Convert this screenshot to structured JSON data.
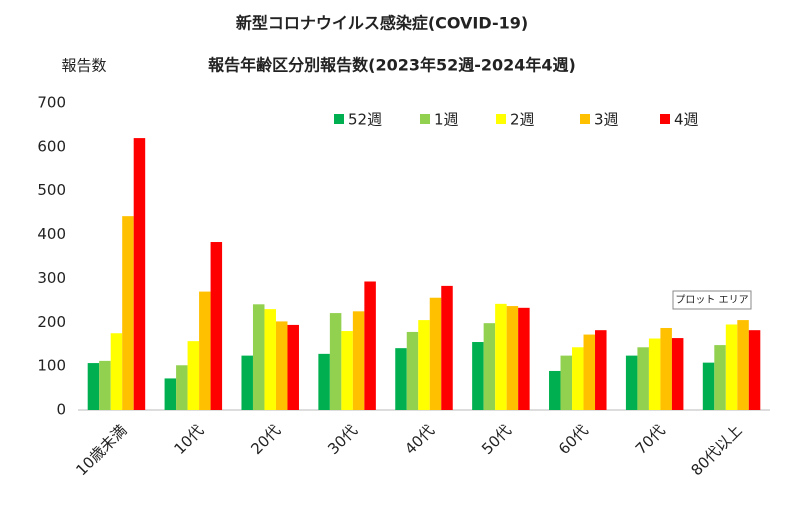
{
  "chart_data": {
    "type": "bar",
    "title": "新型コロナウイルス感染症(COVID-19)",
    "subtitle": "報告年齢区分別報告数(2023年52週-2024年4週)",
    "y_label": "報告数",
    "tooltip": "プロット エリア",
    "categories": [
      "10歳未満",
      "10代",
      "20代",
      "30代",
      "40代",
      "50代",
      "60代",
      "70代",
      "80代以上"
    ],
    "series": [
      {
        "name": "52週",
        "color": "#00b050",
        "values": [
          107,
          72,
          124,
          128,
          141,
          155,
          89,
          124,
          108
        ]
      },
      {
        "name": "1週",
        "color": "#92d050",
        "values": [
          112,
          102,
          241,
          221,
          178,
          198,
          124,
          143,
          148
        ]
      },
      {
        "name": "2週",
        "color": "#ffff00",
        "values": [
          175,
          157,
          230,
          180,
          205,
          242,
          143,
          163,
          195
        ]
      },
      {
        "name": "3週",
        "color": "#ffc000",
        "values": [
          442,
          270,
          202,
          225,
          256,
          237,
          172,
          187,
          205
        ]
      },
      {
        "name": "4週",
        "color": "#ff0000",
        "values": [
          620,
          383,
          194,
          293,
          283,
          233,
          182,
          164,
          182
        ]
      }
    ],
    "ylim": [
      0,
      700
    ],
    "yticks": [
      0,
      100,
      200,
      300,
      400,
      500,
      600,
      700
    ],
    "grid": false
  }
}
